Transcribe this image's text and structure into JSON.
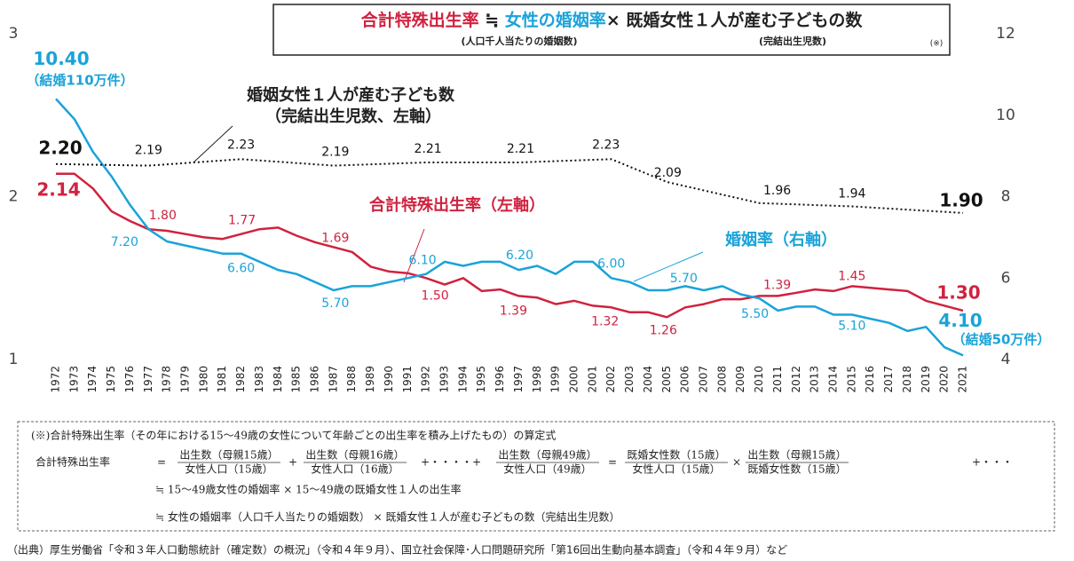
{
  "chart_data": {
    "type": "line",
    "header": {
      "parts": [
        "合計特殊出生率",
        "≒",
        "女性の婚姻率",
        "×",
        "既婚女性１人が産む子どもの数"
      ],
      "sub": [
        "(人口千人当たりの婚姻数)",
        "(完結出生児数)",
        "(※)"
      ]
    },
    "categories": [
      "1972",
      "1973",
      "1974",
      "1975",
      "1976",
      "1977",
      "1978",
      "1979",
      "1980",
      "1981",
      "1982",
      "1983",
      "1984",
      "1985",
      "1986",
      "1987",
      "1988",
      "1989",
      "1990",
      "1991",
      "1992",
      "1993",
      "1994",
      "1995",
      "1996",
      "1997",
      "1998",
      "1999",
      "2000",
      "2001",
      "2002",
      "2003",
      "2004",
      "2005",
      "2006",
      "2007",
      "2008",
      "2009",
      "2010",
      "2011",
      "2012",
      "2013",
      "2014",
      "2015",
      "2016",
      "2017",
      "2018",
      "2019",
      "2020",
      "2021"
    ],
    "ylim": [
      1,
      3
    ],
    "yticks": [
      1,
      2,
      3
    ],
    "y2lim": [
      4,
      12
    ],
    "y2ticks": [
      4,
      6,
      8,
      10,
      12
    ],
    "series": [
      {
        "name": "合計特殊出生率（左軸）",
        "color": "#d0223f",
        "values": [
          2.14,
          2.14,
          2.05,
          1.91,
          1.85,
          1.8,
          1.79,
          1.77,
          1.75,
          1.74,
          1.77,
          1.8,
          1.81,
          1.76,
          1.72,
          1.69,
          1.66,
          1.57,
          1.54,
          1.53,
          1.5,
          1.46,
          1.5,
          1.42,
          1.43,
          1.39,
          1.38,
          1.34,
          1.36,
          1.33,
          1.32,
          1.29,
          1.29,
          1.26,
          1.32,
          1.34,
          1.37,
          1.37,
          1.39,
          1.39,
          1.41,
          1.43,
          1.42,
          1.45,
          1.44,
          1.43,
          1.42,
          1.36,
          1.33,
          1.3
        ],
        "value_labels": [
          "2.14",
          null,
          null,
          null,
          null,
          "1.80",
          null,
          null,
          null,
          null,
          "1.77",
          null,
          null,
          null,
          null,
          "1.69",
          null,
          null,
          null,
          null,
          "1.50",
          null,
          null,
          null,
          null,
          "1.39",
          null,
          null,
          null,
          null,
          "1.32",
          null,
          null,
          "1.26",
          null,
          null,
          null,
          null,
          "1.39",
          null,
          null,
          null,
          null,
          "1.45",
          null,
          null,
          null,
          null,
          null,
          "1.30"
        ]
      },
      {
        "name": "婚姻率（右軸）",
        "color": "#1aa3d9",
        "axis": "y2",
        "values": [
          10.4,
          9.9,
          9.1,
          8.5,
          7.8,
          7.2,
          6.9,
          6.8,
          6.7,
          6.6,
          6.6,
          6.4,
          6.2,
          6.1,
          5.9,
          5.7,
          5.8,
          5.8,
          5.9,
          6.0,
          6.1,
          6.4,
          6.3,
          6.4,
          6.4,
          6.2,
          6.3,
          6.1,
          6.4,
          6.4,
          6.0,
          5.9,
          5.7,
          5.7,
          5.8,
          5.7,
          5.8,
          5.6,
          5.5,
          5.2,
          5.3,
          5.3,
          5.1,
          5.1,
          5.0,
          4.9,
          4.7,
          4.8,
          4.3,
          4.1
        ],
        "value_labels": [
          "10.40",
          null,
          null,
          null,
          null,
          "7.20",
          null,
          null,
          null,
          null,
          "6.60",
          null,
          null,
          null,
          null,
          "5.70",
          null,
          null,
          null,
          null,
          "6.10",
          null,
          null,
          null,
          null,
          "6.20",
          null,
          null,
          null,
          null,
          "6.00",
          null,
          null,
          "5.70",
          null,
          null,
          null,
          null,
          "5.50",
          null,
          null,
          null,
          null,
          "5.10",
          null,
          null,
          null,
          null,
          null,
          "4.10"
        ]
      },
      {
        "name": "婚姻女性１人が産む子ども数",
        "color": "#111111",
        "dashed": true,
        "x": [
          "1972",
          "1977",
          "1982",
          "1987",
          "1992",
          "1997",
          "2002",
          "2005",
          "2010",
          "2015",
          "2021"
        ],
        "values": [
          2.2,
          2.19,
          2.23,
          2.19,
          2.21,
          2.21,
          2.23,
          2.09,
          1.96,
          1.94,
          1.9
        ],
        "value_labels": [
          "2.20",
          "2.19",
          "2.23",
          "2.19",
          "2.21",
          "2.21",
          "2.23",
          "2.09",
          "1.96",
          "1.94",
          "1.90"
        ]
      }
    ],
    "annotations": [
      "（完結出生児数、左軸）",
      "（結婚110万件）",
      "（結婚50万件）"
    ]
  },
  "note": {
    "heading": "(※)合計特殊出生率（その年における15～49歳の女性について年齢ごとの出生率を積み上げたもの）の算定式",
    "formula_label": "合計特殊出生率",
    "terms": [
      "=",
      {
        "numerator": "出生数（母親15歳）",
        "denominator": "女性人口（15歳）"
      },
      "+",
      {
        "numerator": "出生数（母親16歳）",
        "denominator": "女性人口（16歳）"
      },
      "+・・・・+",
      {
        "numerator": "出生数（母親49歳）",
        "denominator": "女性人口（49歳）"
      },
      "=",
      {
        "numerator": "既婚女性数（15歳）",
        "denominator": "女性人口（15歳）"
      },
      "×",
      {
        "numerator": "出生数（母親15歳）",
        "denominator": "既婚女性数（15歳）"
      },
      "+・・・"
    ],
    "lines": [
      "≒ 15～49歳女性の婚姻率 × 15～49歳の既婚女性１人の出生率",
      "≒ 女性の婚姻率（人口千人当たりの婚姻数） × 既婚女性１人が産む子どもの数（完結出生児数）"
    ]
  },
  "source": "（出典）厚生労働省「令和３年人口動態統計（確定数）の概況」（令和４年９月）、国立社会保障･人口問題研究所「第16回出生動向基本調査」（令和４年９月）など"
}
